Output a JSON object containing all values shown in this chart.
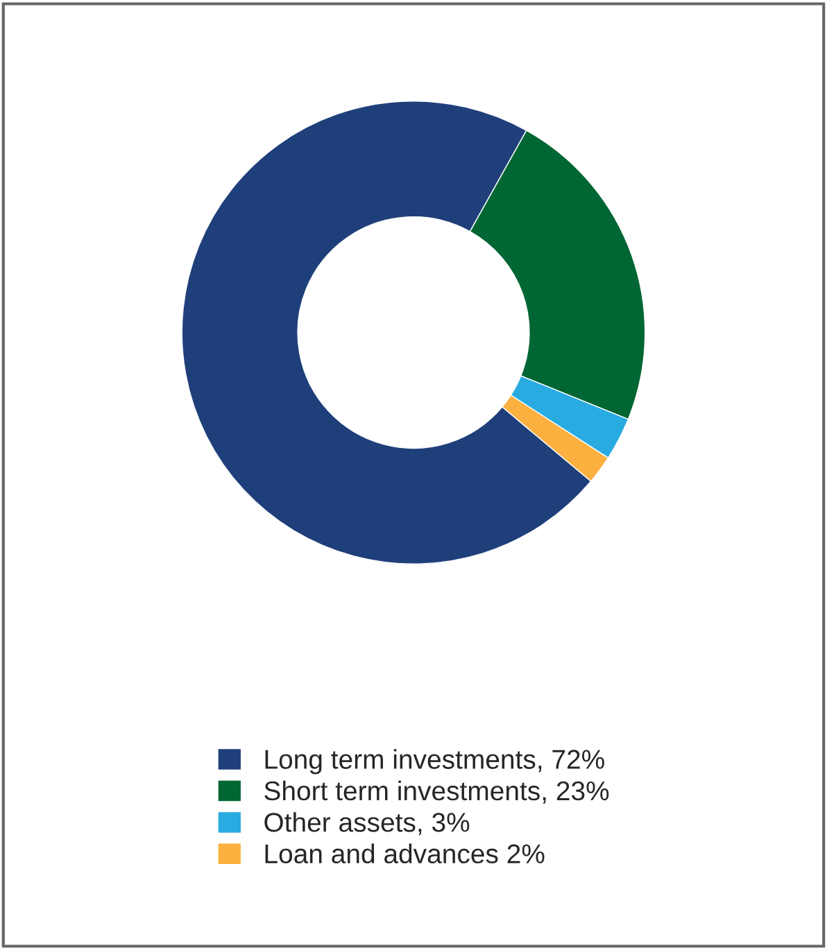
{
  "chart_data": {
    "type": "donut",
    "categories": [
      "Long term investments, 72%",
      "Short term investments, 23%",
      "Other assets, 3%",
      "Loan and advances 2%"
    ],
    "values": [
      72,
      23,
      3,
      2
    ],
    "colors": [
      "#1f3f7a",
      "#006633",
      "#29abe2",
      "#fbb040"
    ],
    "legend": "bottom"
  }
}
